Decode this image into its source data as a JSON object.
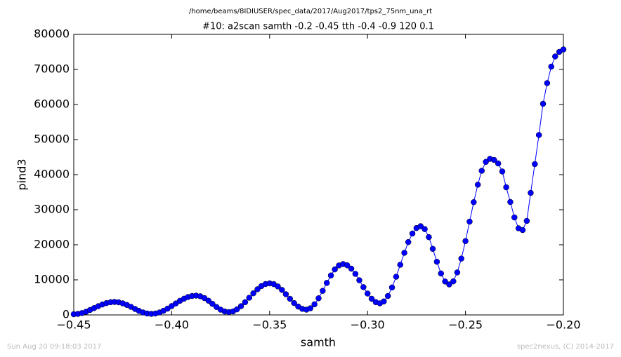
{
  "chart_data": {
    "type": "line",
    "title": "/home/beams/8IDIUSER/spec_data/2017/Aug2017/tps2_75nm_una_rt",
    "subtitle": "#10: a2scan  samth -0.2 -0.45  tth -0.4 -0.9  120 0.1",
    "x_label": "samth",
    "y_label": "pind3",
    "footer_left": "Sun Aug 20 09:18:03 2017",
    "footer_right": "spec2nexus, (C) 2014-2017",
    "xlim": [
      -0.45,
      -0.2
    ],
    "ylim": [
      0,
      80000
    ],
    "xticks": [
      {
        "value": -0.45,
        "label": "−0.45"
      },
      {
        "value": -0.4,
        "label": "−0.40"
      },
      {
        "value": -0.35,
        "label": "−0.35"
      },
      {
        "value": -0.3,
        "label": "−0.30"
      },
      {
        "value": -0.25,
        "label": "−0.25"
      },
      {
        "value": -0.2,
        "label": "−0.20"
      }
    ],
    "yticks": [
      0,
      10000,
      20000,
      30000,
      40000,
      50000,
      60000,
      70000,
      80000
    ],
    "grid": false,
    "x": [
      -0.45,
      -0.4479,
      -0.4458,
      -0.4437,
      -0.4417,
      -0.4396,
      -0.4375,
      -0.4354,
      -0.4333,
      -0.4312,
      -0.4292,
      -0.4271,
      -0.425,
      -0.4229,
      -0.4208,
      -0.4187,
      -0.4167,
      -0.4146,
      -0.4125,
      -0.4104,
      -0.4083,
      -0.4062,
      -0.4042,
      -0.4021,
      -0.4,
      -0.3979,
      -0.3958,
      -0.3937,
      -0.3917,
      -0.3896,
      -0.3875,
      -0.3854,
      -0.3833,
      -0.3812,
      -0.3792,
      -0.3771,
      -0.375,
      -0.3729,
      -0.3708,
      -0.3687,
      -0.3667,
      -0.3646,
      -0.3625,
      -0.3604,
      -0.3583,
      -0.3562,
      -0.3542,
      -0.3521,
      -0.35,
      -0.3479,
      -0.3458,
      -0.3437,
      -0.3417,
      -0.3396,
      -0.3375,
      -0.3354,
      -0.3333,
      -0.3312,
      -0.3292,
      -0.3271,
      -0.325,
      -0.3229,
      -0.3208,
      -0.3187,
      -0.3167,
      -0.3146,
      -0.3125,
      -0.3104,
      -0.3083,
      -0.3062,
      -0.3042,
      -0.3021,
      -0.3,
      -0.2979,
      -0.2958,
      -0.2937,
      -0.2917,
      -0.2896,
      -0.2875,
      -0.2854,
      -0.2833,
      -0.2812,
      -0.2792,
      -0.2771,
      -0.275,
      -0.2729,
      -0.2708,
      -0.2687,
      -0.2667,
      -0.2646,
      -0.2625,
      -0.2604,
      -0.2583,
      -0.2562,
      -0.2542,
      -0.2521,
      -0.25,
      -0.2479,
      -0.2458,
      -0.2437,
      -0.2417,
      -0.2396,
      -0.2375,
      -0.2354,
      -0.2333,
      -0.2312,
      -0.2292,
      -0.2271,
      -0.225,
      -0.2229,
      -0.2208,
      -0.2187,
      -0.2167,
      -0.2146,
      -0.2125,
      -0.2104,
      -0.2083,
      -0.2062,
      -0.2042,
      -0.2021,
      -0.2
    ],
    "series": [
      {
        "name": "pind3",
        "color": "#0000ff",
        "values": [
          200,
          290,
          530,
          920,
          1410,
          1950,
          2490,
          2980,
          3370,
          3620,
          3700,
          3600,
          3300,
          2850,
          2300,
          1700,
          1150,
          700,
          400,
          300,
          400,
          710,
          1180,
          1790,
          2530,
          3270,
          4010,
          4620,
          5090,
          5400,
          5500,
          5320,
          4810,
          4050,
          3150,
          2250,
          1490,
          980,
          800,
          1000,
          1580,
          2490,
          3630,
          4900,
          6170,
          7310,
          8220,
          8800,
          9000,
          8780,
          8120,
          7130,
          5900,
          4600,
          3380,
          2380,
          1730,
          1500,
          1890,
          3020,
          4750,
          6870,
          9130,
          11250,
          12980,
          14110,
          14500,
          14160,
          13190,
          11700,
          9880,
          7920,
          6100,
          4610,
          3640,
          3300,
          3840,
          5400,
          7830,
          10890,
          14300,
          17710,
          20770,
          23210,
          24770,
          25300,
          24470,
          22180,
          18840,
          15160,
          11820,
          9530,
          8700,
          9580,
          12120,
          16070,
          21050,
          26600,
          32150,
          37130,
          41100,
          43640,
          44500,
          44200,
          43200,
          40900,
          36400,
          32200,
          27800,
          24700,
          24200,
          26800,
          34800,
          43000,
          51300,
          60200,
          66100,
          70800,
          73700,
          75000,
          75700
        ]
      }
    ]
  }
}
